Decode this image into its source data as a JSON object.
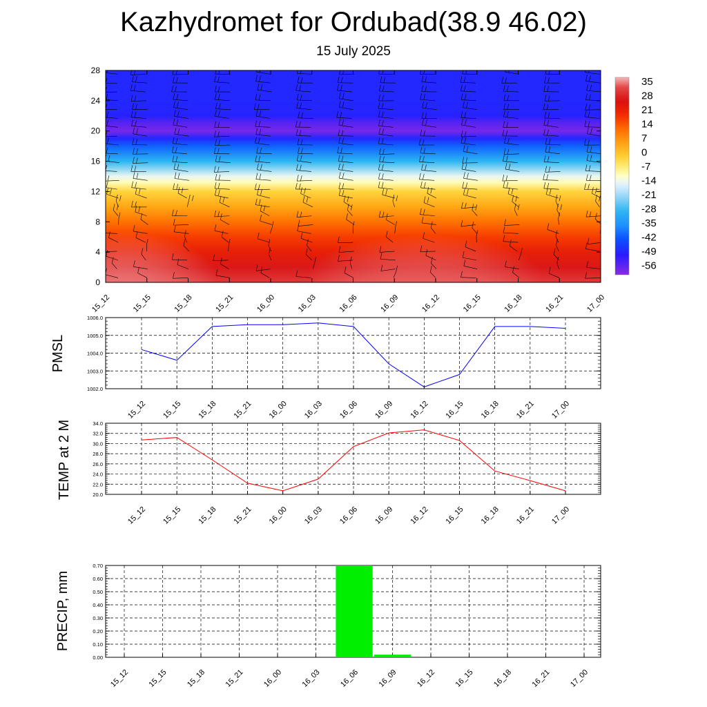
{
  "title": "Kazhydromet for Ordubad(38.9 46.02)",
  "subtitle": "15 July 2025",
  "colors": {
    "pmsl_line": "#0000ff",
    "temp_line": "#ff0000",
    "precip_bar": "#00ee00",
    "wind_barb": "#000000"
  },
  "chart_data": [
    {
      "type": "heatmap",
      "x_ticks": [
        "15_12",
        "15_15",
        "15_18",
        "15_21",
        "16_00",
        "16_03",
        "16_06",
        "16_09",
        "16_12",
        "16_15",
        "16_18",
        "16_21",
        "17_00"
      ],
      "y_ticks": [
        0,
        4,
        8,
        12,
        16,
        20,
        24,
        28
      ],
      "ylim": [
        0,
        28
      ],
      "colorbar_labels": [
        "35",
        "28",
        "21",
        "14",
        "7",
        "0",
        "-7",
        "-14",
        "-21",
        "-28",
        "-35",
        "-42",
        "-49",
        "-56"
      ],
      "colorbar_range": [
        -60,
        40
      ],
      "temperature_profile": {
        "heights": [
          0,
          2,
          4,
          6,
          8,
          10,
          12,
          13.2,
          14,
          16,
          18,
          19,
          20,
          21,
          22,
          24,
          28
        ],
        "values": [
          33,
          29,
          24,
          19,
          13,
          6,
          -1,
          -9,
          -13,
          -28,
          -40,
          -48,
          -58,
          -55,
          -49,
          -48,
          -48
        ]
      },
      "overlay": "wind barbs"
    },
    {
      "type": "line",
      "ylabel": "PMSL",
      "categories": [
        "15_12",
        "15_15",
        "15_18",
        "15_21",
        "16_00",
        "16_03",
        "16_06",
        "16_09",
        "16_12",
        "16_15",
        "16_18",
        "16_21",
        "17_00"
      ],
      "values": [
        1004.2,
        1003.6,
        1005.5,
        1005.6,
        1005.6,
        1005.7,
        1005.5,
        1003.4,
        1002.1,
        1002.8,
        1005.5,
        1005.5,
        1005.4
      ],
      "ylim": [
        1002.0,
        1006.0
      ],
      "y_ticks": [
        "1002.0",
        "1003.0",
        "1004.0",
        "1005.0",
        "1006.0"
      ],
      "grid": true
    },
    {
      "type": "line",
      "ylabel": "TEMP at 2 M",
      "categories": [
        "15_12",
        "15_15",
        "15_18",
        "15_21",
        "16_00",
        "16_03",
        "16_06",
        "16_09",
        "16_12",
        "16_15",
        "16_18",
        "16_21",
        "17_00"
      ],
      "values": [
        30.7,
        31.2,
        26.8,
        22.2,
        20.7,
        23.0,
        29.4,
        32.1,
        32.7,
        30.6,
        24.6,
        22.7,
        20.7
      ],
      "ylim": [
        20.0,
        34.0
      ],
      "y_ticks": [
        "20.0",
        "22.0",
        "24.0",
        "26.0",
        "28.0",
        "30.0",
        "32.0",
        "34.0"
      ],
      "grid": true
    },
    {
      "type": "bar",
      "ylabel": "PRECIP, mm",
      "categories": [
        "15_12",
        "15_15",
        "15_18",
        "15_21",
        "16_00",
        "16_03",
        "16_06",
        "16_09",
        "16_12",
        "16_15",
        "16_18",
        "16_21",
        "17_00"
      ],
      "values": [
        0,
        0,
        0,
        0,
        0,
        0,
        0.7,
        0.02,
        0,
        0,
        0,
        0,
        0
      ],
      "ylim": [
        0,
        0.7
      ],
      "y_ticks": [
        "0.00",
        "0.10",
        "0.20",
        "0.30",
        "0.40",
        "0.50",
        "0.60",
        "0.70"
      ],
      "grid": true
    }
  ]
}
